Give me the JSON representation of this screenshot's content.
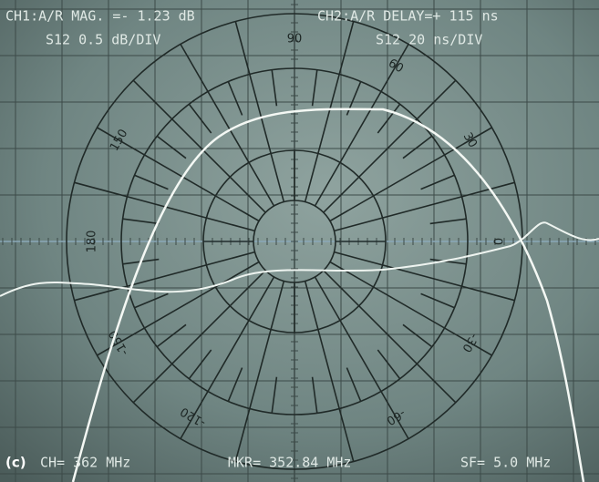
{
  "header": {
    "ch1": "CH1:A/R MAG. =- 1.23 dB",
    "ch2": "CH2:A/R DELAY=+ 115 ns",
    "ch1_scale": "S12  0.5 dB/DIV",
    "ch2_scale": "S12  20 ns/DIV"
  },
  "angle_labels": [
    "90",
    "60",
    "30",
    "0",
    "-30",
    "-60",
    "-120",
    "-150",
    "180",
    "150"
  ],
  "footer": {
    "panel": "(c)",
    "center": "CH= 362  MHz",
    "marker": "MKR= 352.84 MHz",
    "span": "SF= 5.0 MHz"
  }
}
